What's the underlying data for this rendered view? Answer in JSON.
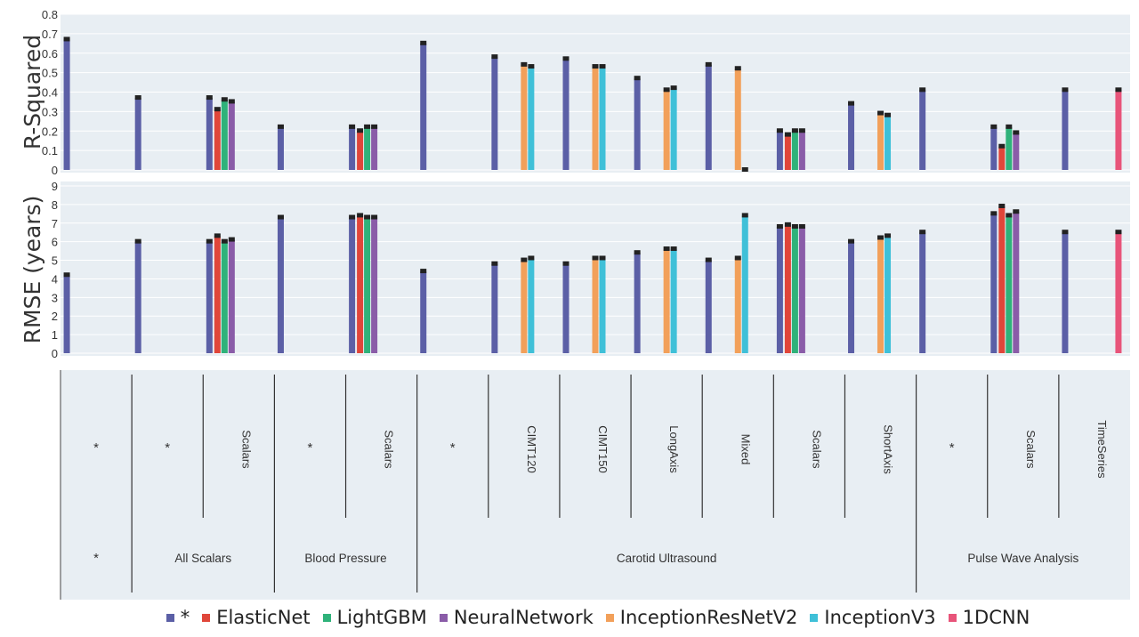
{
  "chart_data": {
    "type": "bar",
    "colors": {
      "*": "#5b5fa6",
      "ElasticNet": "#e0463a",
      "LightGBM": "#2fb27a",
      "NeuralNetwork": "#8a5ca8",
      "InceptionResNetV2": "#f2a05a",
      "InceptionV3": "#3fc0d8",
      "1DCNN": "#e8547a"
    },
    "legend": [
      "*",
      "ElasticNet",
      "LightGBM",
      "NeuralNetwork",
      "InceptionResNetV2",
      "InceptionV3",
      "1DCNN"
    ],
    "panels": [
      {
        "ylabel": "R-Squared",
        "ylim": [
          0,
          0.8
        ],
        "yticks": [
          "0",
          "0.1",
          "0.2",
          "0.3",
          "0.4",
          "0.5",
          "0.6",
          "0.7",
          "0.8"
        ]
      },
      {
        "ylabel": "RMSE (years)",
        "ylim": [
          0,
          9
        ],
        "yticks": [
          "0",
          "1",
          "2",
          "3",
          "4",
          "5",
          "6",
          "7",
          "8",
          "9"
        ]
      }
    ],
    "subgroups": [
      "*",
      "*",
      "Scalars",
      "*",
      "Scalars",
      "*",
      "CIMT120",
      "CIMT150",
      "LongAxis",
      "Mixed",
      "Scalars",
      "ShortAxis",
      "*",
      "Scalars",
      "TimeSeries"
    ],
    "groups": [
      "*",
      "All Scalars",
      "Blood Pressure",
      "Carotid Ultrasound",
      "Pulse Wave Analysis"
    ],
    "series": [
      {
        "name": "*",
        "r2": [
          0.67,
          0.37,
          0.37,
          0.22,
          0.22,
          0.65,
          0.58,
          0.57,
          0.47,
          0.54,
          0.2,
          0.34,
          0.41,
          0.22,
          0.41
        ],
        "rmse": [
          4.2,
          6.0,
          6.0,
          7.3,
          7.3,
          4.4,
          4.8,
          4.8,
          5.4,
          5.0,
          6.8,
          6.0,
          6.5,
          7.5,
          6.5
        ]
      },
      {
        "name": "ElasticNet",
        "r2": [
          null,
          null,
          0.31,
          null,
          0.2,
          null,
          null,
          null,
          null,
          null,
          0.18,
          null,
          null,
          0.12,
          null
        ],
        "rmse": [
          null,
          null,
          6.3,
          null,
          7.4,
          null,
          null,
          null,
          null,
          null,
          6.9,
          null,
          null,
          7.9,
          null
        ]
      },
      {
        "name": "LightGBM",
        "r2": [
          null,
          null,
          0.36,
          null,
          0.22,
          null,
          null,
          null,
          null,
          null,
          0.2,
          null,
          null,
          0.22,
          null
        ],
        "rmse": [
          null,
          null,
          6.0,
          null,
          7.3,
          null,
          null,
          null,
          null,
          null,
          6.8,
          null,
          null,
          7.4,
          null
        ]
      },
      {
        "name": "NeuralNetwork",
        "r2": [
          null,
          null,
          0.35,
          null,
          0.22,
          null,
          null,
          null,
          null,
          null,
          0.2,
          null,
          null,
          0.19,
          null
        ],
        "rmse": [
          null,
          null,
          6.1,
          null,
          7.3,
          null,
          null,
          null,
          null,
          null,
          6.8,
          null,
          null,
          7.6,
          null
        ]
      },
      {
        "name": "InceptionResNetV2",
        "r2": [
          null,
          null,
          null,
          null,
          null,
          null,
          0.54,
          0.53,
          0.41,
          0.52,
          null,
          0.29,
          null,
          null,
          null
        ],
        "rmse": [
          null,
          null,
          null,
          null,
          null,
          null,
          5.0,
          5.1,
          5.6,
          5.1,
          null,
          6.2,
          null,
          null,
          null
        ]
      },
      {
        "name": "InceptionV3",
        "r2": [
          null,
          null,
          null,
          null,
          null,
          null,
          0.53,
          0.53,
          0.42,
          0.0,
          null,
          0.28,
          null,
          null,
          null
        ],
        "rmse": [
          null,
          null,
          null,
          null,
          null,
          null,
          5.1,
          5.1,
          5.6,
          7.4,
          null,
          6.3,
          null,
          null,
          null
        ]
      },
      {
        "name": "1DCNN",
        "r2": [
          null,
          null,
          null,
          null,
          null,
          null,
          null,
          null,
          null,
          null,
          null,
          null,
          null,
          null,
          0.41
        ],
        "rmse": [
          null,
          null,
          null,
          null,
          null,
          null,
          null,
          null,
          null,
          null,
          null,
          null,
          null,
          null,
          6.5
        ]
      }
    ]
  }
}
